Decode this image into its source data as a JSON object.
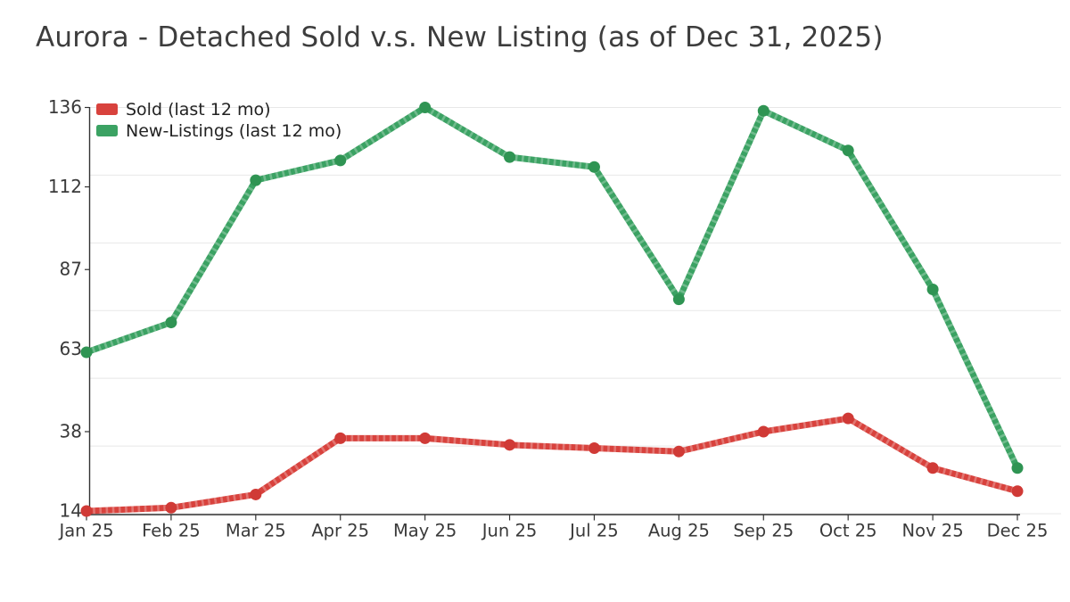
{
  "title": "Aurora - Detached Sold v.s. New Listing (as of Dec 31, 2025)",
  "colors": {
    "sold_line": "#d8423d",
    "sold_marker": "#d03a36",
    "new_listings_line": "#3ba263",
    "new_listings_marker": "#2f9453",
    "gridline": "#e8e8e8",
    "axis_line": "#333333",
    "tick_text": "#3a3a3a",
    "title_text": "#3d3d3d"
  },
  "chart_data": {
    "type": "line",
    "title": "Aurora - Detached Sold v.s. New Listing (as of Dec 31, 2025)",
    "categories": [
      "Jan 25",
      "Feb 25",
      "Mar 25",
      "Apr 25",
      "May 25",
      "Jun 25",
      "Jul 25",
      "Aug 25",
      "Sep 25",
      "Oct 25",
      "Nov 25",
      "Dec 25"
    ],
    "series": [
      {
        "name": "Sold (last 12 mo)",
        "color": "#d8423d",
        "marker_color": "#d03a36",
        "values": [
          14,
          15,
          19,
          36,
          36,
          34,
          33,
          32,
          38,
          42,
          27,
          20
        ]
      },
      {
        "name": "New-Listings (last 12 mo)",
        "color": "#3ba263",
        "marker_color": "#2f9453",
        "values": [
          62,
          71,
          114,
          120,
          136,
          121,
          118,
          78,
          135,
          123,
          81,
          27
        ]
      }
    ],
    "xlabel": "",
    "ylabel": "",
    "yticks": [
      14,
      38,
      63,
      87,
      112,
      136
    ],
    "ylim": [
      14,
      136
    ],
    "grid": "horizontal-only",
    "gridline_count": 7,
    "legend_position": "top-left-inside",
    "line_style": "thick-hatched",
    "markers": "circle"
  }
}
